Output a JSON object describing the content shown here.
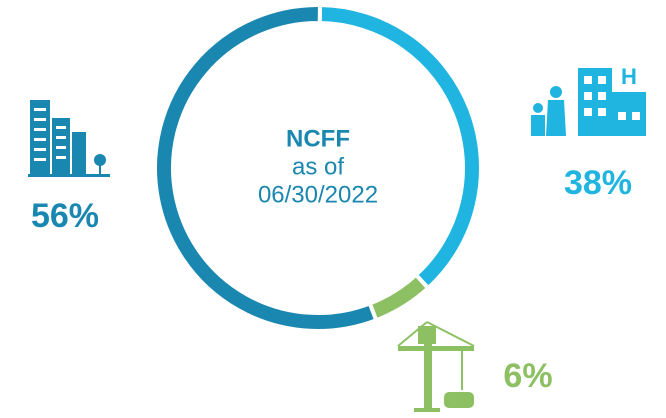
{
  "chart_data": {
    "type": "donut",
    "title": "NCFF",
    "subtitle": [
      "as of",
      "06/30/2022"
    ],
    "values": [
      38,
      6,
      56
    ],
    "value_labels": [
      "38%",
      "6%",
      "56%"
    ],
    "colors": [
      "#1fb5e0",
      "#8dc063",
      "#1a87b0"
    ]
  }
}
